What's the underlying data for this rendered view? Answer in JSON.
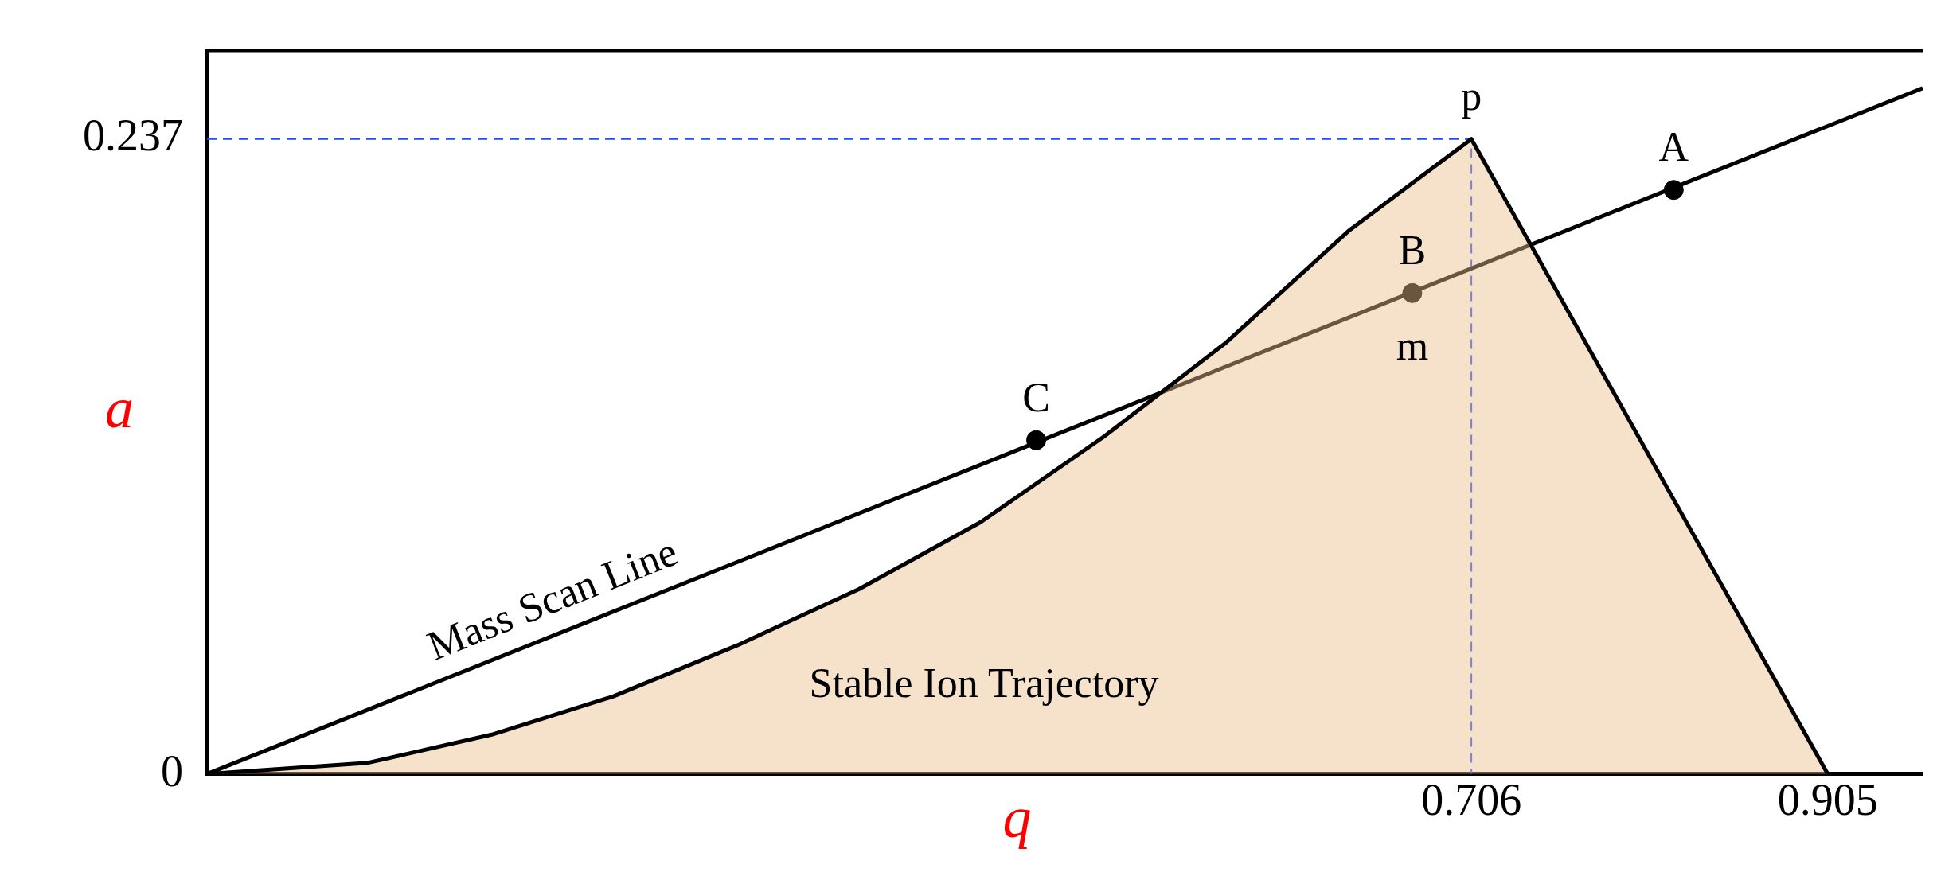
{
  "chart_data": {
    "type": "line",
    "xlabel": "q",
    "ylabel": "a",
    "xlim": [
      0,
      0.958
    ],
    "ylim": [
      0,
      0.27
    ],
    "xticks": [
      0.706,
      0.905
    ],
    "yticks": [
      0,
      0.237
    ],
    "grid": false,
    "legend": false,
    "series": [
      {
        "type": "area",
        "color": "#000000",
        "x": [
          0,
          0.09,
          0.159,
          0.227,
          0.296,
          0.364,
          0.432,
          0.501,
          0.569,
          0.638,
          0.706,
          0.905
        ],
        "values": [
          0,
          0.0042,
          0.0147,
          0.029,
          0.048,
          0.069,
          0.094,
          0.126,
          0.161,
          0.203,
          0.237,
          0
        ]
      },
      {
        "color": "#000000",
        "x": [
          0,
          0.958
        ],
        "values": [
          0,
          0.256
        ]
      },
      {
        "type": "scatter",
        "color": "#000000",
        "marker": "circle",
        "x": [
          0.463,
          0.673,
          0.819
        ],
        "values": [
          0.1246,
          0.1795,
          0.218
        ]
      },
      {
        "type": "line",
        "color": "#1f4fff",
        "line_style": "dashed",
        "x": [
          0,
          0.706,
          0.706
        ],
        "values": [
          0.237,
          0.237,
          0
        ]
      }
    ],
    "annotations": [
      {
        "text": "p",
        "x": 0.706,
        "y": 0.237
      },
      {
        "text": "A",
        "x": 0.819,
        "y": 0.218
      },
      {
        "text": "B",
        "x": 0.673,
        "y": 0.1795
      },
      {
        "text": "m",
        "x": 0.673,
        "y": 0.1795
      },
      {
        "text": "C",
        "x": 0.463,
        "y": 0.1246
      },
      {
        "text": "Mass Scan Line",
        "x": 0.2,
        "y": 0.0534
      },
      "Stable Ion Trajectory"
    ]
  }
}
